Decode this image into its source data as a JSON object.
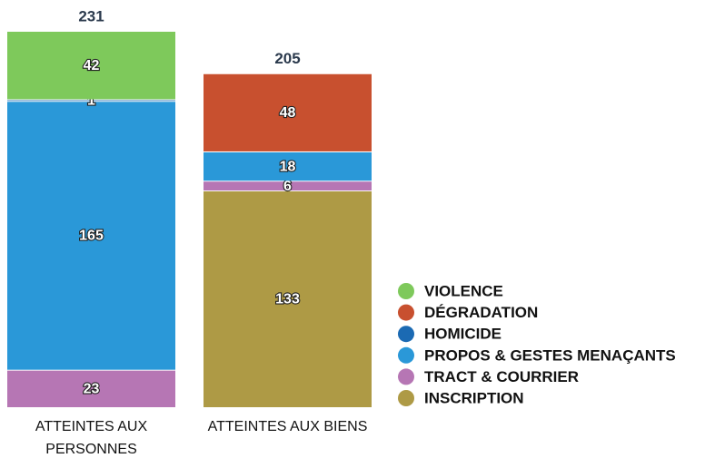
{
  "chart_data": {
    "type": "stacked_bar",
    "categories": [
      "ATTEINTES AUX PERSONNES",
      "ATTEINTES AUX BIENS"
    ],
    "totals": [
      231,
      205
    ],
    "series": [
      {
        "name": "INSCRIPTION",
        "color": "#ae9a45",
        "values": [
          null,
          133
        ]
      },
      {
        "name": "TRACT & COURRIER",
        "color": "#b676b4",
        "values": [
          23,
          6
        ]
      },
      {
        "name": "PROPOS & GESTES MENAÇANTS",
        "color": "#2a98d8",
        "values": [
          165,
          18
        ]
      },
      {
        "name": "HOMICIDE",
        "color": "#1b6ab3",
        "values": [
          1,
          null
        ]
      },
      {
        "name": "DÉGRADATION",
        "color": "#c8502f",
        "values": [
          null,
          48
        ]
      },
      {
        "name": "VIOLENCE",
        "color": "#7ec95b",
        "values": [
          42,
          null
        ]
      }
    ]
  }
}
